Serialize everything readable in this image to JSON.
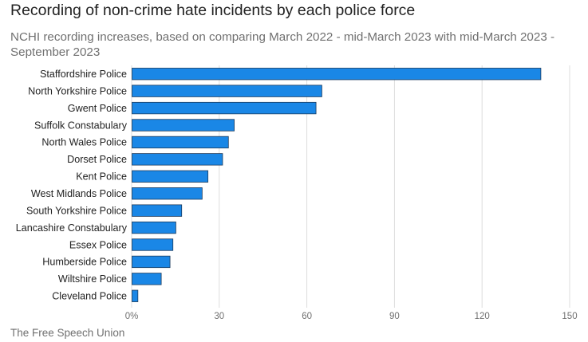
{
  "header": {
    "title": "Recording of non-crime hate incidents by each police force",
    "subtitle": "NCHI recording increases, based on comparing March 2022 - mid-March 2023 with mid-March 2023 - September 2023"
  },
  "footer": {
    "source": "The Free Speech Union"
  },
  "colors": {
    "bar": "#1a87e6",
    "bar_stroke": "#1b3a5c",
    "grid": "#dddddd"
  },
  "chart_data": {
    "type": "bar",
    "orientation": "horizontal",
    "title": "Recording of non-crime hate incidents by each police force",
    "subtitle": "NCHI recording increases, based on comparing March 2022 - mid-March 2023 with mid-March 2023 - September 2023",
    "categories": [
      "Staffordshire Police",
      "North Yorkshire Police",
      "Gwent Police",
      "Suffolk Constabulary",
      "North Wales Police",
      "Dorset Police",
      "Kent Police",
      "West Midlands Police",
      "South Yorkshire Police",
      "Lancashire Constabulary",
      "Essex Police",
      "Humberside Police",
      "Wiltshire Police",
      "Cleveland Police"
    ],
    "values": [
      140,
      65,
      63,
      35,
      33,
      31,
      26,
      24,
      17,
      15,
      14,
      13,
      10,
      2
    ],
    "xlim": [
      0,
      150
    ],
    "xticks": [
      0,
      30,
      60,
      90,
      120,
      150
    ],
    "xtick_labels": [
      "0%",
      "30",
      "60",
      "90",
      "120",
      "150"
    ],
    "grid": true
  }
}
